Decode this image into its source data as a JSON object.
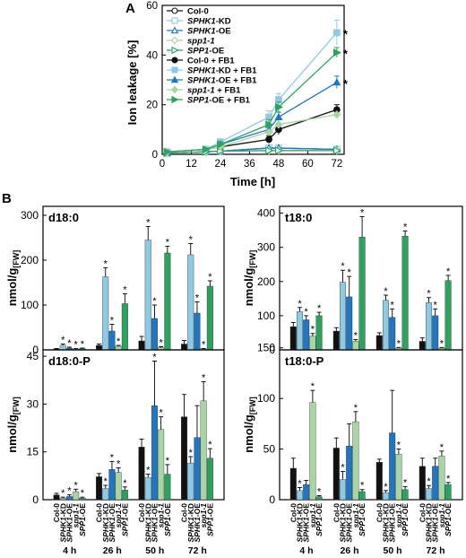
{
  "colors": {
    "black": "#111111",
    "light_blue": "#8ecae6",
    "blue": "#1f77c4",
    "light_green": "#a8d5a2",
    "green": "#2ca25f"
  },
  "panelA": {
    "label": "A",
    "xlabel": "Time [h]",
    "ylabel": "Ion leakage [%]",
    "xticks": [
      "0",
      "12",
      "24",
      "36",
      "48",
      "60",
      "72"
    ],
    "yticks": [
      "0",
      "20",
      "40",
      "60"
    ],
    "stars": [
      "*",
      "*",
      "*"
    ],
    "legend": [
      {
        "name": "Col-0",
        "italic": "",
        "suffix": ""
      },
      {
        "name": "SPHK1-KD",
        "italic": "SPHK1",
        "suffix": "-KD"
      },
      {
        "name": "SPHK1-OE",
        "italic": "SPHK1",
        "suffix": "-OE"
      },
      {
        "name": "spp1-1",
        "italic": "spp1-1",
        "suffix": ""
      },
      {
        "name": "SPP1-OE",
        "italic": "SPP1",
        "suffix": "-OE"
      },
      {
        "name": "Col-0 + FB1",
        "italic": "",
        "suffix": ""
      },
      {
        "name": "SPHK1-KD + FB1",
        "italic": "SPHK1",
        "suffix": "-KD + FB1"
      },
      {
        "name": "SPHK1-OE + FB1",
        "italic": "SPHK1",
        "suffix": "-OE + FB1"
      },
      {
        "name": "spp1-1 + FB1",
        "italic": "spp1-1",
        "suffix": " + FB1"
      },
      {
        "name": "SPP1-OE + FB1",
        "italic": "SPP1",
        "suffix": "-OE + FB1"
      }
    ]
  },
  "panelB": {
    "label": "B",
    "ylabel": "nmol/g",
    "ylabel_sub": "[FW]",
    "timepoints": [
      "4 h",
      "26 h",
      "50 h",
      "72 h"
    ],
    "genotypes": [
      "Col-0",
      "SPHK1-KD",
      "SPHK1-OE",
      "spp1-1",
      "SPP1-OE"
    ]
  },
  "chart_data": [
    {
      "type": "line",
      "title": "A",
      "xlabel": "Time [h]",
      "ylabel": "Ion leakage [%]",
      "xlim": [
        0,
        75
      ],
      "ylim": [
        0,
        60
      ],
      "x": [
        2,
        18,
        24,
        44,
        48,
        72
      ],
      "series": [
        {
          "name": "Col-0",
          "values": [
            0.5,
            1,
            1.3,
            2.5,
            2.5,
            2
          ]
        },
        {
          "name": "SPHK1-KD",
          "values": [
            0.5,
            1,
            1.3,
            2.5,
            2.5,
            2
          ]
        },
        {
          "name": "SPHK1-OE",
          "values": [
            0.5,
            1,
            1.3,
            2.5,
            2.5,
            2
          ]
        },
        {
          "name": "spp1-1",
          "values": [
            0.5,
            1,
            1.3,
            1.5,
            1.5,
            1.5
          ]
        },
        {
          "name": "SPP1-OE",
          "values": [
            0.5,
            1,
            1.3,
            1.5,
            1.5,
            1.5
          ]
        },
        {
          "name": "Col-0 + FB1",
          "values": [
            1,
            2,
            3,
            6,
            10,
            18
          ]
        },
        {
          "name": "SPHK1-KD + FB1",
          "values": [
            1,
            2,
            5,
            15,
            22,
            49
          ]
        },
        {
          "name": "SPHK1-OE + FB1",
          "values": [
            1,
            2,
            4,
            10,
            15,
            29
          ]
        },
        {
          "name": "spp1-1 + FB1",
          "values": [
            1,
            2,
            3,
            9,
            12,
            16
          ]
        },
        {
          "name": "SPP1-OE + FB1",
          "values": [
            1,
            2,
            4,
            12,
            19,
            41
          ]
        }
      ],
      "errors": {
        "SPHK1-KD + FB1": [
          0.5,
          0.5,
          1,
          2.5,
          2.5,
          5
        ],
        "SPHK1-OE + FB1": [
          0.5,
          0.5,
          1,
          2,
          2,
          2.5
        ],
        "SPP1-OE + FB1": [
          0.5,
          0.5,
          1,
          2,
          2,
          2
        ],
        "Col-0 + FB1": [
          0.5,
          0.5,
          1,
          1.5,
          2,
          2
        ]
      },
      "significant_at_72h": [
        "SPHK1-KD + FB1",
        "SPP1-OE + FB1",
        "SPHK1-OE + FB1"
      ]
    },
    {
      "type": "bar",
      "title": "d18:0",
      "ylabel": "nmol/g[FW]",
      "ylim": [
        0,
        320
      ],
      "yticks": [
        "0",
        "100",
        "200",
        "300"
      ],
      "categories": [
        "4 h",
        "26 h",
        "50 h",
        "72 h"
      ],
      "series": [
        {
          "name": "Col-0",
          "values": [
            2,
            10,
            20,
            13
          ],
          "errors": [
            1,
            3,
            10,
            8
          ],
          "stars": [
            false,
            false,
            false,
            false
          ]
        },
        {
          "name": "SPHK1-KD",
          "values": [
            10,
            163,
            245,
            212
          ],
          "errors": [
            3,
            20,
            30,
            25
          ],
          "stars": [
            true,
            true,
            true,
            true
          ]
        },
        {
          "name": "SPHK1-OE",
          "values": [
            4,
            42,
            70,
            82
          ],
          "errors": [
            2,
            15,
            30,
            25
          ],
          "stars": [
            true,
            true,
            true,
            true
          ]
        },
        {
          "name": "spp1-1",
          "values": [
            2,
            8,
            5,
            2
          ],
          "errors": [
            1,
            2,
            2,
            1
          ],
          "stars": [
            true,
            true,
            true,
            true
          ]
        },
        {
          "name": "SPP1-OE",
          "values": [
            3,
            103,
            216,
            142
          ],
          "errors": [
            1,
            22,
            15,
            12
          ],
          "stars": [
            true,
            true,
            true,
            true
          ]
        }
      ]
    },
    {
      "type": "bar",
      "title": "t18:0",
      "ylabel": "nmol/g[FW]",
      "ylim": [
        0,
        420
      ],
      "yticks": [
        "0",
        "100",
        "200",
        "300",
        "400"
      ],
      "categories": [
        "4 h",
        "26 h",
        "50 h",
        "72 h"
      ],
      "series": [
        {
          "name": "Col-0",
          "values": [
            68,
            55,
            42,
            25
          ],
          "errors": [
            12,
            10,
            8,
            10
          ],
          "stars": [
            false,
            false,
            false,
            false
          ]
        },
        {
          "name": "SPHK1-KD",
          "values": [
            112,
            198,
            145,
            138
          ],
          "errors": [
            12,
            35,
            15,
            15
          ],
          "stars": [
            true,
            true,
            true,
            true
          ]
        },
        {
          "name": "SPHK1-OE",
          "values": [
            88,
            155,
            95,
            100
          ],
          "errors": [
            12,
            60,
            25,
            20
          ],
          "stars": [
            true,
            true,
            true,
            true
          ]
        },
        {
          "name": "spp1-1",
          "values": [
            40,
            25,
            5,
            5
          ],
          "errors": [
            8,
            5,
            2,
            2
          ],
          "stars": [
            true,
            true,
            true,
            true
          ]
        },
        {
          "name": "SPP1-OE",
          "values": [
            100,
            330,
            333,
            203
          ],
          "errors": [
            10,
            60,
            15,
            15
          ],
          "stars": [
            true,
            true,
            true,
            true
          ]
        }
      ]
    },
    {
      "type": "bar",
      "title": "d18:0-P",
      "ylabel": "nmol/g[FW]",
      "ylim": [
        0,
        47
      ],
      "yticks": [
        "0",
        "15",
        "30",
        "45"
      ],
      "categories": [
        "4 h",
        "26 h",
        "50 h",
        "72 h"
      ],
      "series": [
        {
          "name": "Col-0",
          "values": [
            1.5,
            7.2,
            16.5,
            26
          ],
          "errors": [
            0.5,
            1,
            2.5,
            7
          ],
          "stars": [
            false,
            false,
            false,
            false
          ]
        },
        {
          "name": "SPHK1-KD",
          "values": [
            0.5,
            3.5,
            7,
            11.5
          ],
          "errors": [
            0.3,
            1,
            1,
            2
          ],
          "stars": [
            true,
            true,
            true,
            true
          ]
        },
        {
          "name": "SPHK1-OE",
          "values": [
            1,
            9.5,
            29.5,
            19.5
          ],
          "errors": [
            0.5,
            2.5,
            14,
            10
          ],
          "stars": [
            true,
            true,
            true,
            false
          ]
        },
        {
          "name": "spp1-1",
          "values": [
            2.5,
            8.5,
            22,
            31
          ],
          "errors": [
            0.8,
            1.5,
            4,
            6
          ],
          "stars": [
            true,
            true,
            true,
            true
          ]
        },
        {
          "name": "SPP1-OE",
          "values": [
            0.5,
            3,
            8,
            13
          ],
          "errors": [
            0.3,
            1,
            3,
            3
          ],
          "stars": [
            true,
            true,
            true,
            true
          ]
        }
      ]
    },
    {
      "type": "bar",
      "title": "t18:0-P",
      "ylabel": "nmol/g[FW]",
      "ylim": [
        0,
        148
      ],
      "yticks": [
        "0",
        "50",
        "100",
        "150"
      ],
      "categories": [
        "4 h",
        "26 h",
        "50 h",
        "72 h"
      ],
      "series": [
        {
          "name": "Col-0",
          "values": [
            31,
            51,
            37,
            33
          ],
          "errors": [
            10,
            10,
            3,
            8
          ],
          "stars": [
            false,
            false,
            false,
            false
          ]
        },
        {
          "name": "SPHK1-KD",
          "values": [
            9,
            20,
            7,
            11
          ],
          "errors": [
            3,
            8,
            2,
            3
          ],
          "stars": [
            true,
            true,
            true,
            true
          ]
        },
        {
          "name": "SPHK1-OE",
          "values": [
            15,
            53,
            66,
            33
          ],
          "errors": [
            4,
            22,
            42,
            8
          ],
          "stars": [
            false,
            false,
            false,
            false
          ]
        },
        {
          "name": "spp1-1",
          "values": [
            96,
            77,
            45,
            43
          ],
          "errors": [
            12,
            10,
            5,
            5
          ],
          "stars": [
            true,
            true,
            true,
            true
          ]
        },
        {
          "name": "SPP1-OE",
          "values": [
            3,
            8,
            10,
            15
          ],
          "errors": [
            1,
            2,
            3,
            2
          ],
          "stars": [
            true,
            true,
            true,
            true
          ]
        }
      ]
    }
  ]
}
